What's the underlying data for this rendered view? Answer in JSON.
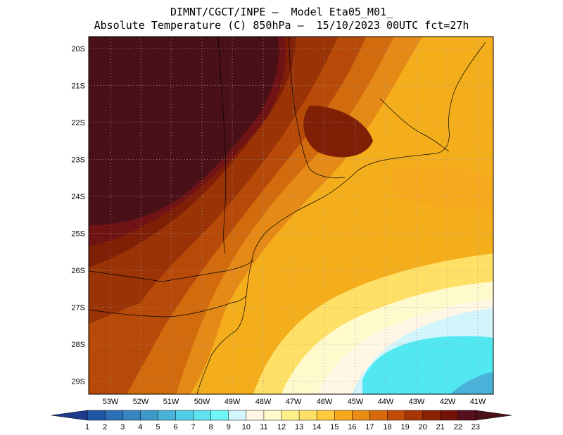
{
  "title_line1": "DIMNT/CGCT/INPE —  Model Eta05_M01_",
  "title_line2": "Absolute Temperature (C) 850hPa —  15/10/2023 00UTC fct=27h",
  "lat_labels": [
    "20S",
    "21S",
    "22S",
    "23S",
    "24S",
    "25S",
    "26S",
    "27S",
    "28S",
    "29S"
  ],
  "lon_labels": [
    "53W",
    "52W",
    "51W",
    "50W",
    "49W",
    "48W",
    "47W",
    "46W",
    "45W",
    "44W",
    "43W",
    "42W",
    "41W"
  ],
  "colorbar": {
    "labels": [
      "1",
      "2",
      "3",
      "4",
      "5",
      "6",
      "7",
      "8",
      "9",
      "10",
      "11",
      "12",
      "13",
      "14",
      "15",
      "16",
      "17",
      "18",
      "19",
      "20",
      "21",
      "22",
      "23"
    ],
    "colors": [
      "#1e3b8c",
      "#1f56a3",
      "#2a6fb6",
      "#3685bf",
      "#3f99c8",
      "#49b2d8",
      "#52cde6",
      "#5fe3ee",
      "#6ff7f7",
      "#d2f5fb",
      "#fff6e5",
      "#fffacc",
      "#fff08a",
      "#ffe066",
      "#ffca3d",
      "#f7a91e",
      "#e98c15",
      "#d96a0c",
      "#c24d08",
      "#a63605",
      "#8a2303",
      "#731308",
      "#560f1c",
      "#4a1018"
    ]
  },
  "map": {
    "region": "southeast-brazil",
    "background_color": "#f4ae1c",
    "grid": true
  }
}
